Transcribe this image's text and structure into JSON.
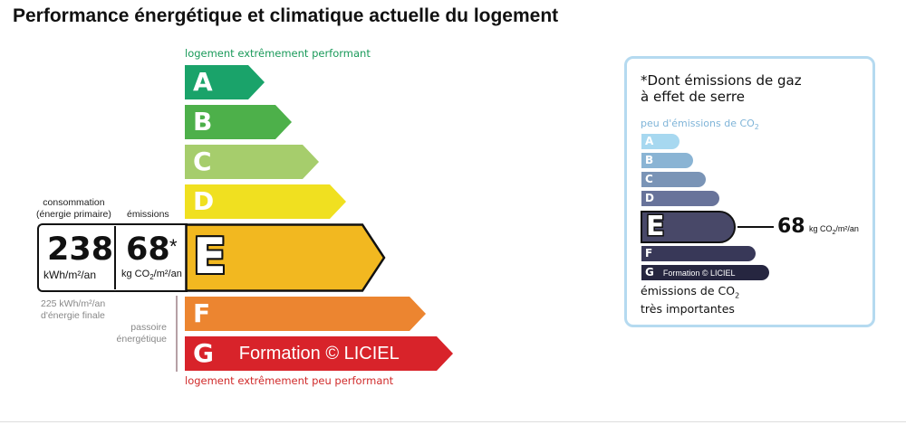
{
  "title": "Performance énergétique et climatique actuelle du logement",
  "energy": {
    "top_caption": "logement extrêmement performant",
    "bottom_caption": "logement extrêmement peu performant",
    "classes": [
      {
        "letter": "A",
        "color": "#1aa36a"
      },
      {
        "letter": "B",
        "color": "#4db04a"
      },
      {
        "letter": "C",
        "color": "#a6cd6c"
      },
      {
        "letter": "D",
        "color": "#f0e020"
      },
      {
        "letter": "E",
        "color": "#f2b820"
      },
      {
        "letter": "F",
        "color": "#ec8530"
      },
      {
        "letter": "G",
        "color": "#d8232a",
        "extra": "Formation © LICIEL"
      }
    ],
    "current_class": "E",
    "consumption_label_1": "consommation",
    "consumption_label_2": "(énergie primaire)",
    "emissions_label": "émissions",
    "consumption_value": "238",
    "consumption_unit": "kWh/m²/an",
    "emissions_value": "68",
    "emissions_star": "*",
    "emissions_unit_pre": "kg CO",
    "emissions_unit_sub": "2",
    "emissions_unit_post": "/m²/an",
    "final_energy_1": "225 kWh/m²/an",
    "final_energy_2": "d'énergie finale",
    "passoire_1": "passoire",
    "passoire_2": "énergétique"
  },
  "ges": {
    "note_1": "*Dont émissions de gaz",
    "note_2": "à effet de serre",
    "top_pre": "peu d'émissions de CO",
    "top_sub": "2",
    "classes": [
      {
        "letter": "A",
        "color": "#a7d8f0"
      },
      {
        "letter": "B",
        "color": "#8ab4d4"
      },
      {
        "letter": "C",
        "color": "#7a94b6"
      },
      {
        "letter": "D",
        "color": "#68739a"
      },
      {
        "letter": "E",
        "color": "#484868"
      },
      {
        "letter": "F",
        "color": "#383858"
      },
      {
        "letter": "G",
        "color": "#262640",
        "extra": "Formation © LICIEL"
      }
    ],
    "current_class": "E",
    "value": "68",
    "unit_pre": "kg CO",
    "unit_sub": "2",
    "unit_post": "/m²/an",
    "bottom_pre": "émissions de CO",
    "bottom_sub": "2",
    "bottom_line2": "très importantes"
  }
}
